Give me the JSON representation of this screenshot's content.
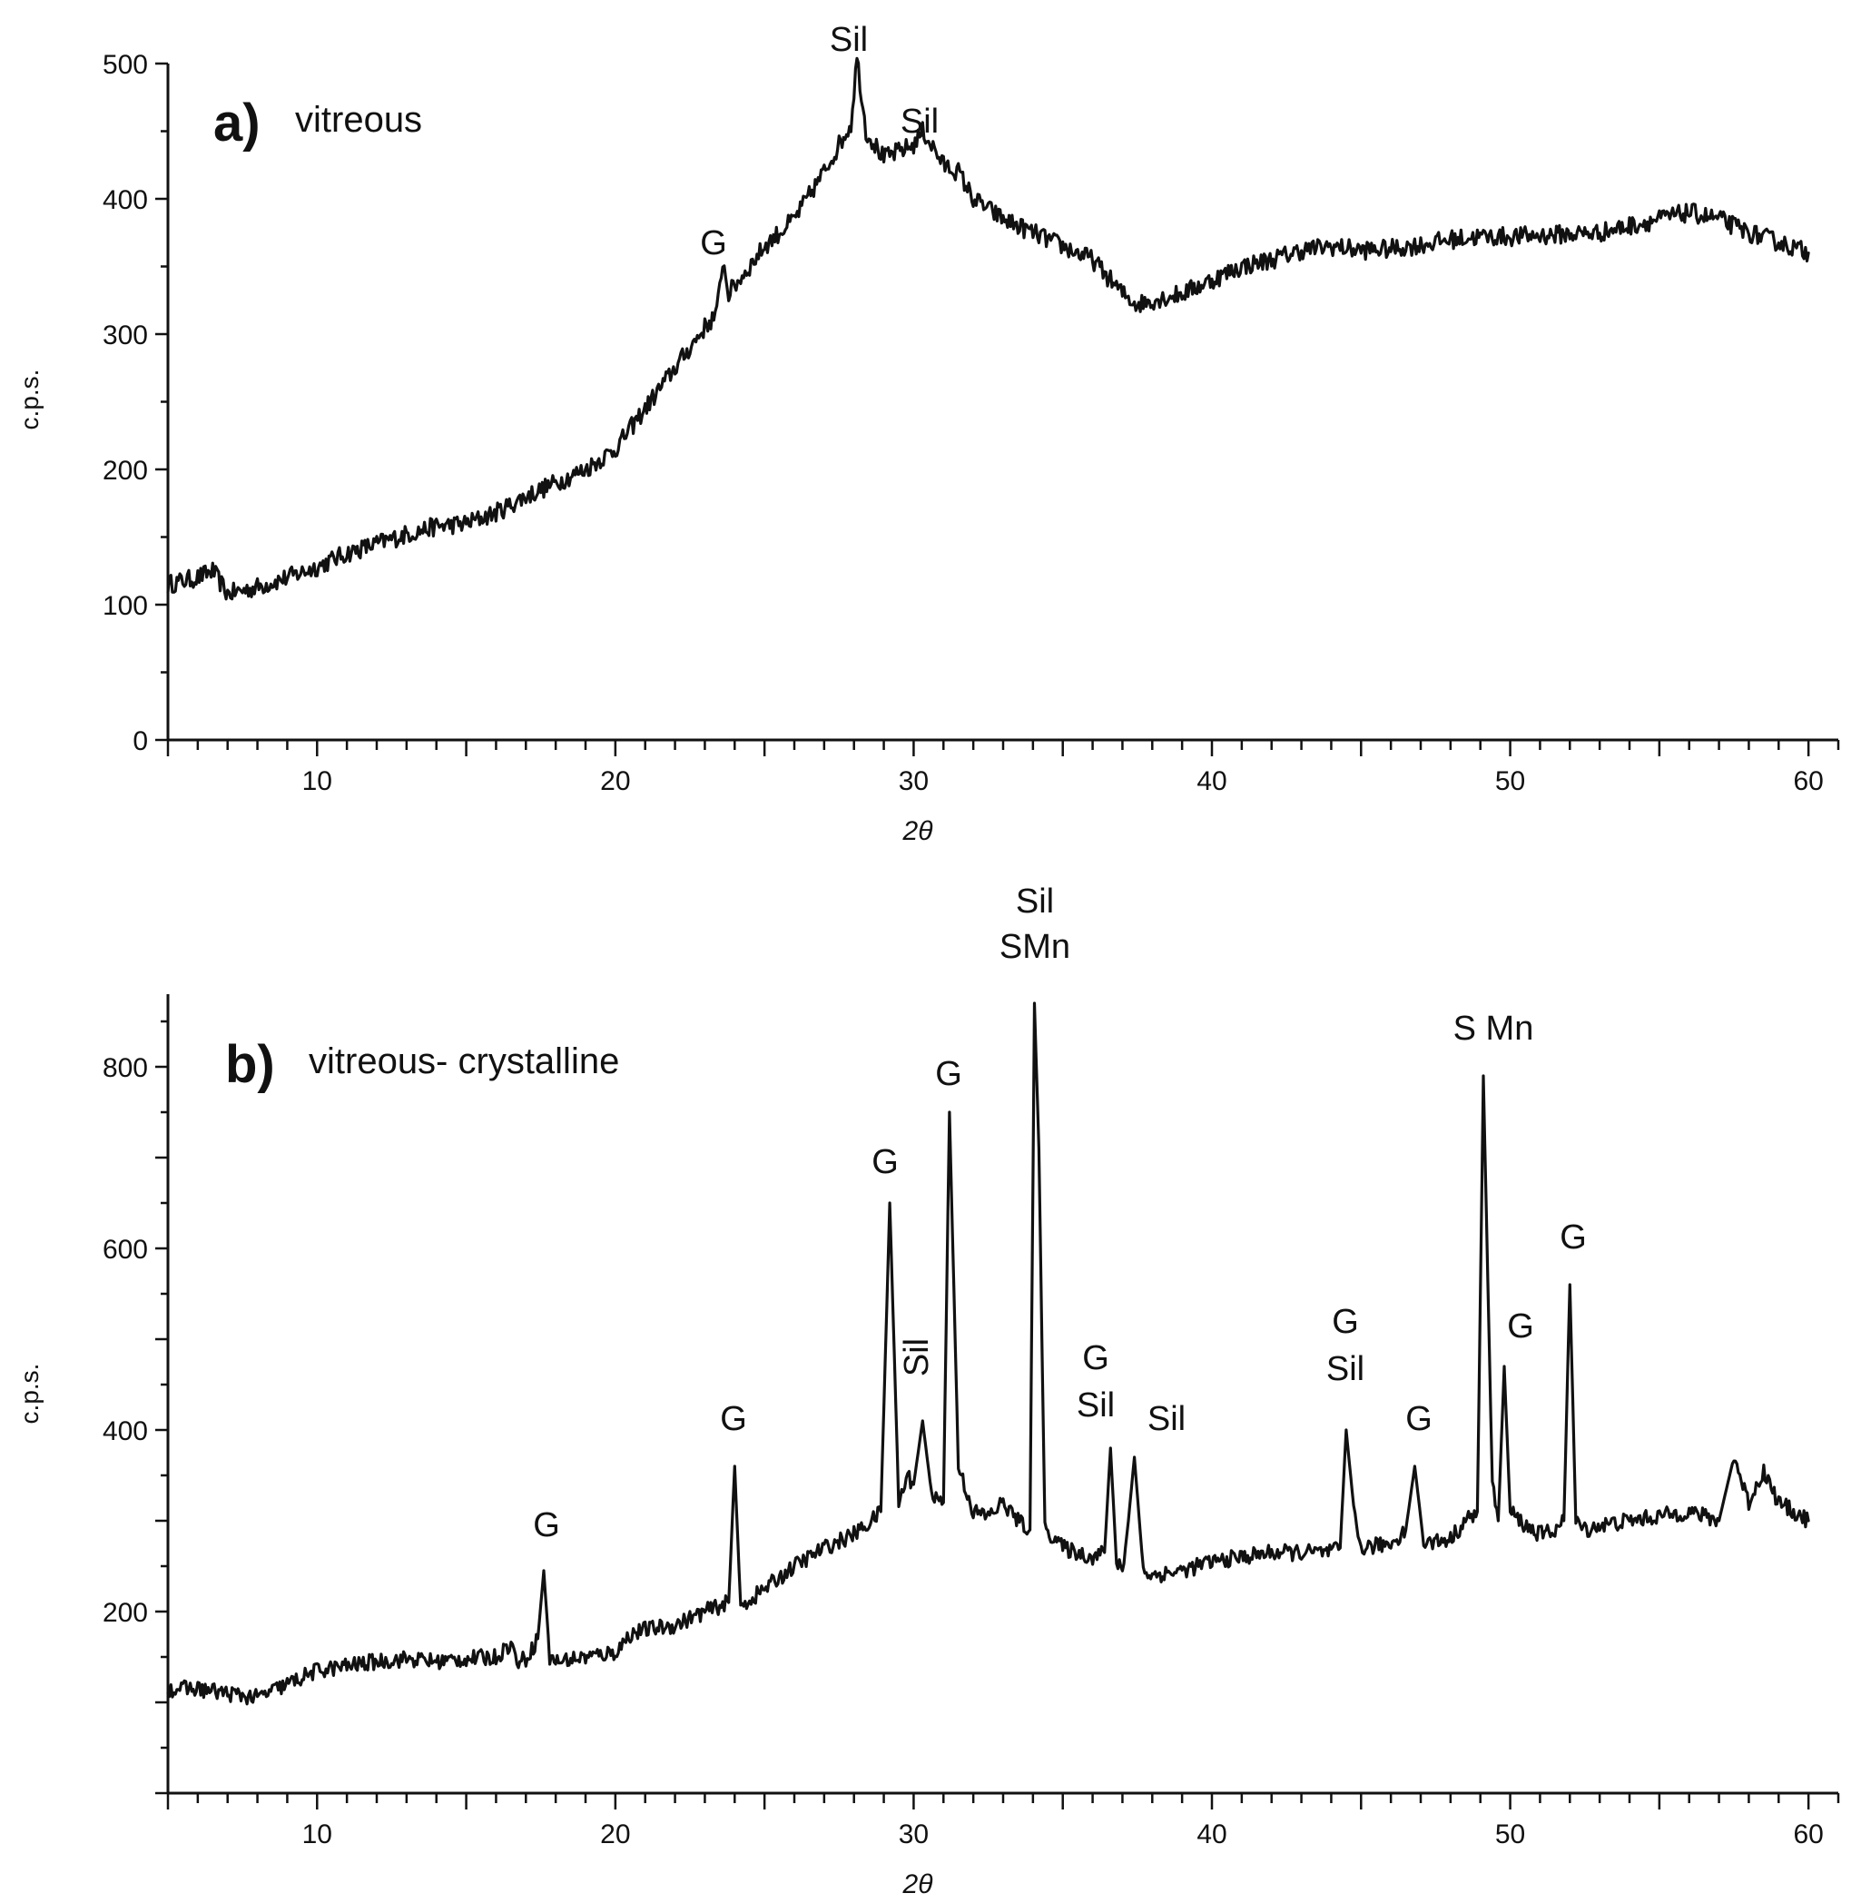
{
  "figure": {
    "background": "#ffffff",
    "ink": "#111111"
  },
  "chart_data": [
    {
      "type": "line",
      "panel": "a)",
      "title": "vitreous",
      "xlabel": "2θ",
      "ylabel": "c.p.s.",
      "xlim": [
        5,
        61
      ],
      "ylim": [
        0,
        500
      ],
      "xticks": [
        10,
        20,
        30,
        40,
        50,
        60
      ],
      "yticks": [
        0,
        100,
        200,
        300,
        400,
        500
      ],
      "ytick_labels": [
        "0",
        "100",
        "200",
        "300",
        "400",
        "500"
      ],
      "series": [
        {
          "name": "vitreous",
          "x": [
            5,
            6,
            6.5,
            7,
            8,
            9,
            10,
            11,
            12,
            13,
            14,
            15,
            16,
            17,
            18,
            19,
            20,
            21,
            22,
            22.5,
            23,
            23.4,
            23.6,
            23.8,
            24.5,
            25,
            26,
            27,
            27.5,
            27.9,
            28.1,
            28.4,
            29,
            29.5,
            30,
            30.3,
            30.6,
            31,
            31.5,
            32,
            33,
            34,
            35,
            36,
            37,
            37.5,
            38,
            39,
            40,
            41,
            42,
            43,
            44,
            45,
            46,
            47,
            48,
            49,
            50,
            51,
            52,
            53,
            54,
            55,
            56,
            57,
            58,
            59,
            60
          ],
          "y": [
            115,
            120,
            125,
            108,
            113,
            120,
            128,
            138,
            145,
            152,
            158,
            160,
            168,
            180,
            190,
            200,
            215,
            245,
            275,
            290,
            305,
            315,
            355,
            330,
            350,
            365,
            385,
            420,
            440,
            455,
            505,
            450,
            430,
            435,
            440,
            450,
            440,
            425,
            420,
            400,
            385,
            375,
            365,
            355,
            330,
            322,
            325,
            330,
            340,
            350,
            355,
            362,
            365,
            362,
            363,
            366,
            370,
            372,
            372,
            373,
            374,
            375,
            380,
            385,
            390,
            385,
            375,
            368,
            360
          ]
        }
      ],
      "annotations": [
        {
          "text": "Sil",
          "x": 28
        },
        {
          "text": "Sil",
          "x": 30.3
        },
        {
          "text": "G",
          "x": 23.5
        }
      ]
    },
    {
      "type": "line",
      "panel": "b)",
      "title": "vitreous- crystalline",
      "xlabel": "2θ",
      "ylabel": "c.p.s.",
      "xlim": [
        5,
        61
      ],
      "ylim": [
        0,
        880
      ],
      "xticks": [
        10,
        20,
        30,
        40,
        50,
        60
      ],
      "yticks": [
        0,
        100,
        200,
        300,
        400,
        500,
        600,
        700,
        800
      ],
      "ytick_labels": [
        "200",
        "400",
        "600",
        "800"
      ],
      "series": [
        {
          "name": "vitreous-crystalline",
          "x": [
            5,
            6,
            7,
            8,
            9,
            10,
            11,
            12,
            13,
            14,
            15,
            16,
            16.5,
            16.7,
            17,
            17.4,
            17.6,
            17.8,
            18,
            19,
            20,
            20.5,
            21,
            22,
            23,
            23.8,
            24,
            24.2,
            25,
            26,
            27,
            28,
            28.6,
            28.9,
            29.2,
            29.5,
            29.8,
            30,
            30.3,
            30.6,
            31,
            31.2,
            31.5,
            32,
            32.5,
            33,
            33.5,
            33.9,
            34.05,
            34.2,
            34.4,
            34.8,
            35,
            35.5,
            36,
            36.4,
            36.6,
            36.8,
            37,
            37.2,
            37.4,
            37.7,
            38,
            39,
            40,
            41,
            42,
            43,
            44,
            44.3,
            44.5,
            44.8,
            45,
            46,
            46.5,
            46.8,
            47.1,
            48,
            48.5,
            48.9,
            49.1,
            49.4,
            49.6,
            49.8,
            50,
            50.5,
            51,
            51.5,
            51.8,
            52,
            52.2,
            52.5,
            53,
            54,
            55,
            56,
            57,
            57.5,
            58,
            58.5,
            59,
            60
          ],
          "y": [
            115,
            115,
            110,
            105,
            120,
            135,
            140,
            145,
            148,
            145,
            148,
            150,
            165,
            145,
            148,
            170,
            245,
            150,
            145,
            150,
            155,
            175,
            180,
            185,
            200,
            210,
            360,
            205,
            225,
            250,
            270,
            285,
            300,
            310,
            650,
            320,
            350,
            340,
            410,
            330,
            320,
            750,
            360,
            310,
            305,
            320,
            300,
            290,
            870,
            710,
            290,
            280,
            270,
            265,
            260,
            265,
            380,
            255,
            245,
            300,
            370,
            245,
            240,
            245,
            255,
            260,
            265,
            265,
            265,
            270,
            400,
            300,
            270,
            275,
            290,
            360,
            275,
            280,
            300,
            310,
            790,
            340,
            300,
            470,
            310,
            295,
            285,
            290,
            300,
            560,
            300,
            290,
            295,
            300,
            305,
            310,
            300,
            370,
            320,
            355,
            320,
            300
          ]
        }
      ],
      "annotations": [
        {
          "text": "Sil",
          "x": 34.05,
          "line": 1
        },
        {
          "text": "SMn",
          "x": 34.05,
          "line": 2
        },
        {
          "text": "G",
          "x": 31.2
        },
        {
          "text": "G",
          "x": 28.9
        },
        {
          "text": "Sil",
          "x": 30.0,
          "rotated": true
        },
        {
          "text": "G",
          "x": 23.9
        },
        {
          "text": "G",
          "x": 17.6
        },
        {
          "text": "G",
          "x": 36.6,
          "line": 1
        },
        {
          "text": "Sil",
          "x": 36.6,
          "line": 2
        },
        {
          "text": "Sil",
          "x": 37.6
        },
        {
          "text": "G",
          "x": 44.3,
          "line": 1
        },
        {
          "text": "Sil",
          "x": 44.3,
          "line": 2
        },
        {
          "text": "G",
          "x": 46.8
        },
        {
          "text": "S Mn",
          "x": 49.3
        },
        {
          "text": "G",
          "x": 50.0
        },
        {
          "text": "G",
          "x": 52.0
        }
      ]
    }
  ]
}
